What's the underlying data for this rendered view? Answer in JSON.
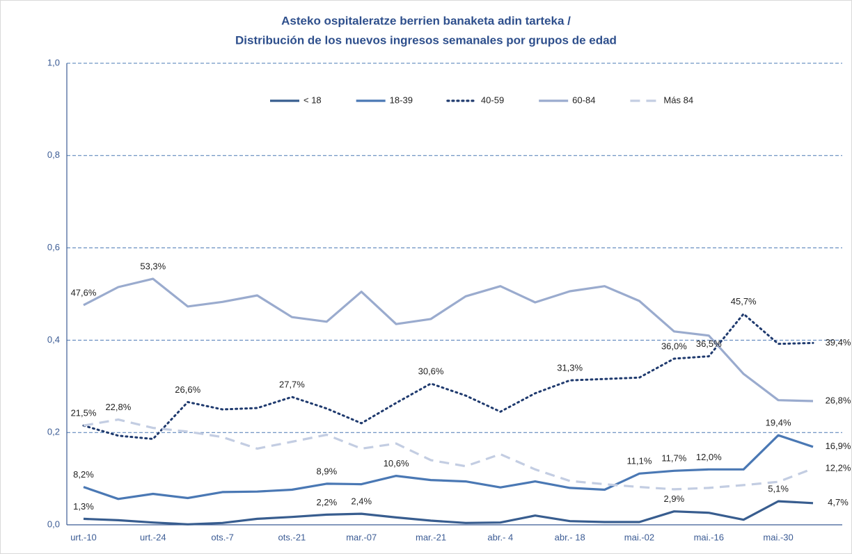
{
  "chart_data": {
    "type": "line",
    "title": [
      "Asteko ospitaleratze berrien banaketa adin tarteka /",
      "Distribución de los nuevos ingresos semanales por grupos de edad"
    ],
    "categories": [
      "urt.-10",
      null,
      "urt.-24",
      null,
      "ots.-7",
      null,
      "ots.-21",
      null,
      "mar.-07",
      null,
      "mar.-21",
      null,
      "abr.- 4",
      null,
      "abr.- 18",
      null,
      "mai.-02",
      null,
      "mai.-16",
      null,
      "mai.-30",
      null
    ],
    "ylim": [
      0,
      1
    ],
    "yticks": [
      {
        "value": 0,
        "label": "0,0"
      },
      {
        "value": 0.2,
        "label": "0,2"
      },
      {
        "value": 0.4,
        "label": "0,4"
      },
      {
        "value": 0.6,
        "label": "0,6"
      },
      {
        "value": 0.8,
        "label": "0,8"
      },
      {
        "value": 1,
        "label": "1,0"
      }
    ],
    "grid": true,
    "legend": "top",
    "series": [
      {
        "name": "< 18",
        "color": "#385d8f",
        "dash": "solid",
        "values": [
          0.013,
          0.01,
          0.005,
          0.001,
          0.004,
          0.013,
          0.017,
          0.022,
          0.024,
          0.016,
          0.009,
          0.004,
          0.005,
          0.02,
          0.008,
          0.006,
          0.006,
          0.029,
          0.026,
          0.011,
          0.051,
          0.047
        ],
        "value_labels": [
          "1,3%",
          null,
          null,
          null,
          null,
          null,
          null,
          "2,2%",
          "2,4%",
          null,
          null,
          null,
          null,
          null,
          null,
          null,
          null,
          "2,9%",
          null,
          null,
          "5,1%",
          "4,7%"
        ]
      },
      {
        "name": "18-39",
        "color": "#4a78b4",
        "dash": "solid",
        "values": [
          0.082,
          0.056,
          0.067,
          0.058,
          0.071,
          0.072,
          0.076,
          0.089,
          0.088,
          0.106,
          0.097,
          0.094,
          0.081,
          0.094,
          0.08,
          0.076,
          0.111,
          0.117,
          0.12,
          0.12,
          0.194,
          0.169
        ],
        "value_labels": [
          "8,2%",
          null,
          null,
          null,
          null,
          null,
          null,
          "8,9%",
          null,
          "10,6%",
          null,
          null,
          null,
          null,
          null,
          null,
          "11,1%",
          "11,7%",
          "12,0%",
          null,
          "19,4%",
          "16,9%"
        ]
      },
      {
        "name": "40-59",
        "color": "#1f3a6e",
        "dash": "dotted",
        "values": [
          0.215,
          0.193,
          0.186,
          0.266,
          0.25,
          0.253,
          0.277,
          0.252,
          0.22,
          0.264,
          0.306,
          0.28,
          0.245,
          0.285,
          0.313,
          0.316,
          0.319,
          0.36,
          0.365,
          0.457,
          0.392,
          0.394
        ],
        "value_labels": [
          "21,5%",
          null,
          null,
          "26,6%",
          null,
          null,
          "27,7%",
          null,
          null,
          null,
          "30,6%",
          null,
          null,
          null,
          "31,3%",
          null,
          null,
          "36,0%",
          "36,5%",
          "45,7%",
          null,
          "39,4%"
        ]
      },
      {
        "name": "60-84",
        "color": "#9aabce",
        "dash": "solid",
        "values": [
          0.476,
          0.515,
          0.533,
          0.473,
          0.483,
          0.497,
          0.45,
          0.44,
          0.505,
          0.435,
          0.446,
          0.495,
          0.517,
          0.482,
          0.506,
          0.517,
          0.485,
          0.419,
          0.41,
          0.327,
          0.27,
          0.268
        ],
        "value_labels": [
          "47,6%",
          null,
          "53,3%",
          null,
          null,
          null,
          null,
          null,
          null,
          null,
          null,
          null,
          null,
          null,
          null,
          null,
          null,
          null,
          null,
          null,
          null,
          "26,8%"
        ]
      },
      {
        "name": "Más 84",
        "color": "#c3cde2",
        "dash": "dashed",
        "values": [
          0.215,
          0.228,
          0.21,
          0.202,
          0.19,
          0.165,
          0.18,
          0.195,
          0.165,
          0.176,
          0.14,
          0.127,
          0.153,
          0.12,
          0.095,
          0.088,
          0.082,
          0.077,
          0.08,
          0.086,
          0.093,
          0.122
        ],
        "value_labels": [
          null,
          "22,8%",
          null,
          null,
          null,
          null,
          null,
          null,
          null,
          null,
          null,
          null,
          null,
          null,
          null,
          null,
          null,
          null,
          null,
          null,
          null,
          "12,2%"
        ]
      }
    ]
  }
}
